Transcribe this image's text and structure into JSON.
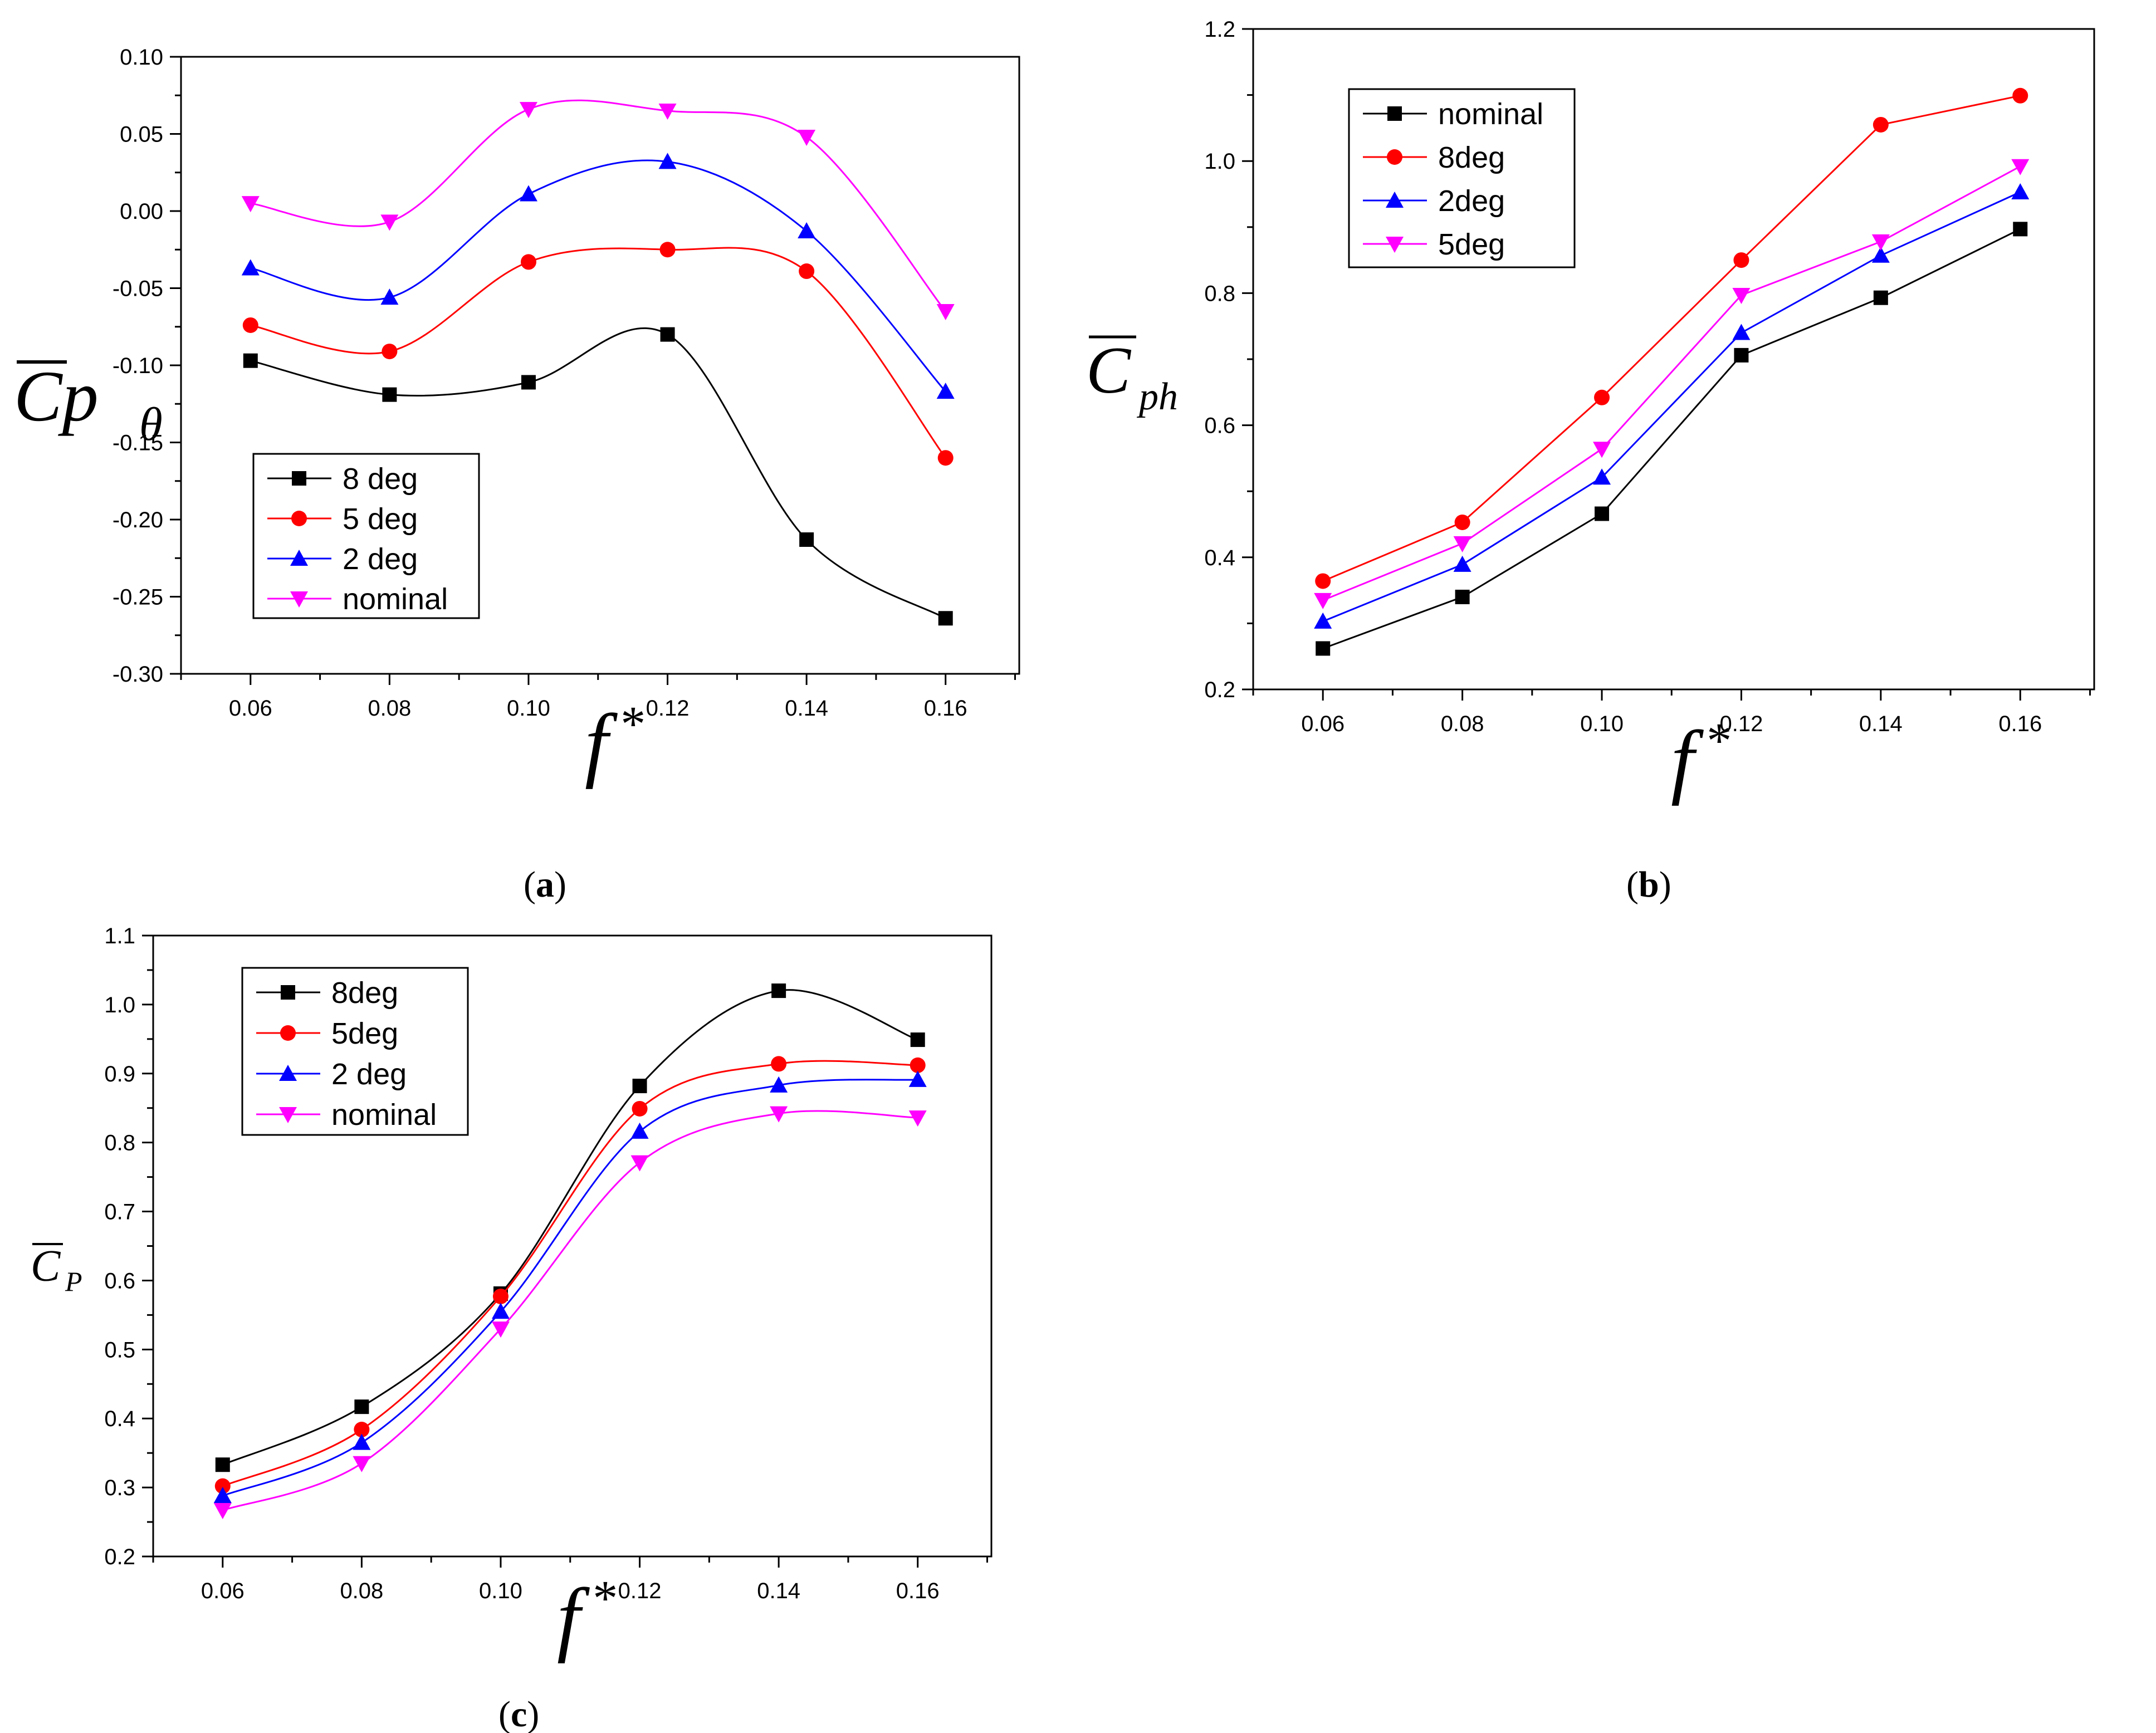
{
  "chart_data": [
    {
      "panel": "(a)",
      "panel_letter": "a",
      "type": "line",
      "title": "",
      "xlabel": "f*",
      "ylabel": "Cpθ",
      "ylabel_main": "Cp",
      "ylabel_sub": "θ",
      "xlabel_main": "f",
      "xlabel_sup": "*",
      "x": [
        0.06,
        0.08,
        0.1,
        0.12,
        0.14,
        0.16
      ],
      "xticks": [
        "0.06",
        "0.08",
        "0.10",
        "0.12",
        "0.14",
        "0.16"
      ],
      "xlim": [
        0.05,
        0.1706
      ],
      "ylim": [
        -0.3,
        0.1
      ],
      "yticks": [
        "-0.30",
        "-0.25",
        "-0.20",
        "-0.15",
        "-0.10",
        "-0.05",
        "0.00",
        "0.05",
        "0.10"
      ],
      "smooth": true,
      "legend_position": "lower-left",
      "series": [
        {
          "name": "8 deg",
          "color": "#000000",
          "marker": "square",
          "values": [
            -0.097,
            -0.119,
            -0.111,
            -0.08,
            -0.213,
            -0.264
          ]
        },
        {
          "name": "5 deg",
          "color": "#ff0000",
          "marker": "circle",
          "values": [
            -0.074,
            -0.091,
            -0.033,
            -0.025,
            -0.039,
            -0.16
          ]
        },
        {
          "name": "2 deg",
          "color": "#0000ff",
          "marker": "triangle-up",
          "values": [
            -0.037,
            -0.056,
            0.011,
            0.032,
            -0.013,
            -0.117
          ]
        },
        {
          "name": "nominal",
          "color": "#ff00ff",
          "marker": "triangle-down",
          "values": [
            0.005,
            -0.007,
            0.066,
            0.065,
            0.048,
            -0.065
          ]
        }
      ]
    },
    {
      "panel": "(b)",
      "panel_letter": "b",
      "type": "line",
      "title": "",
      "xlabel": "f*",
      "ylabel": "Cph",
      "ylabel_main": "C",
      "ylabel_sub": "ph",
      "xlabel_main": "f",
      "xlabel_sup": "*",
      "x": [
        0.06,
        0.08,
        0.1,
        0.12,
        0.14,
        0.16
      ],
      "xticks": [
        "0.06",
        "0.08",
        "0.10",
        "0.12",
        "0.14",
        "0.16"
      ],
      "xlim": [
        0.05,
        0.1706
      ],
      "ylim": [
        0.2,
        1.2
      ],
      "yticks": [
        "0.2",
        "0.4",
        "0.6",
        "0.8",
        "1.0",
        "1.2"
      ],
      "smooth": false,
      "legend_position": "top-left",
      "series": [
        {
          "name": "nominal",
          "color": "#000000",
          "marker": "square",
          "values": [
            0.262,
            0.34,
            0.466,
            0.706,
            0.793,
            0.897
          ]
        },
        {
          "name": "8deg",
          "color": "#ff0000",
          "marker": "circle",
          "values": [
            0.364,
            0.453,
            0.642,
            0.85,
            1.055,
            1.099
          ]
        },
        {
          "name": "2deg",
          "color": "#0000ff",
          "marker": "triangle-up",
          "values": [
            0.303,
            0.389,
            0.521,
            0.74,
            0.857,
            0.953
          ]
        },
        {
          "name": "5deg",
          "color": "#ff00ff",
          "marker": "triangle-down",
          "values": [
            0.335,
            0.421,
            0.564,
            0.797,
            0.878,
            0.992
          ]
        }
      ]
    },
    {
      "panel": "(c)",
      "panel_letter": "c",
      "type": "line",
      "title": "",
      "xlabel": "f*",
      "ylabel": "CP",
      "ylabel_main": "C",
      "ylabel_sub": "P",
      "xlabel_main": "f",
      "xlabel_sup": "*",
      "x": [
        0.06,
        0.08,
        0.1,
        0.12,
        0.14,
        0.16
      ],
      "xticks": [
        "0.06",
        "0.08",
        "0.10",
        "0.12",
        "0.14",
        "0.16"
      ],
      "xlim": [
        0.05,
        0.1706
      ],
      "ylim": [
        0.2,
        1.1
      ],
      "yticks": [
        "0.2",
        "0.3",
        "0.4",
        "0.5",
        "0.6",
        "0.7",
        "0.8",
        "0.9",
        "1.0",
        "1.1"
      ],
      "smooth": true,
      "legend_position": "top-left",
      "series": [
        {
          "name": "8deg",
          "color": "#000000",
          "marker": "square",
          "values": [
            0.333,
            0.417,
            0.581,
            0.882,
            1.02,
            0.949
          ]
        },
        {
          "name": "5deg",
          "color": "#ff0000",
          "marker": "circle",
          "values": [
            0.302,
            0.384,
            0.577,
            0.849,
            0.914,
            0.912
          ]
        },
        {
          "name": "2 deg",
          "color": "#0000ff",
          "marker": "triangle-up",
          "values": [
            0.288,
            0.365,
            0.555,
            0.816,
            0.883,
            0.891
          ]
        },
        {
          "name": "nominal",
          "color": "#ff00ff",
          "marker": "triangle-down",
          "values": [
            0.267,
            0.335,
            0.53,
            0.771,
            0.842,
            0.836
          ]
        }
      ]
    }
  ]
}
